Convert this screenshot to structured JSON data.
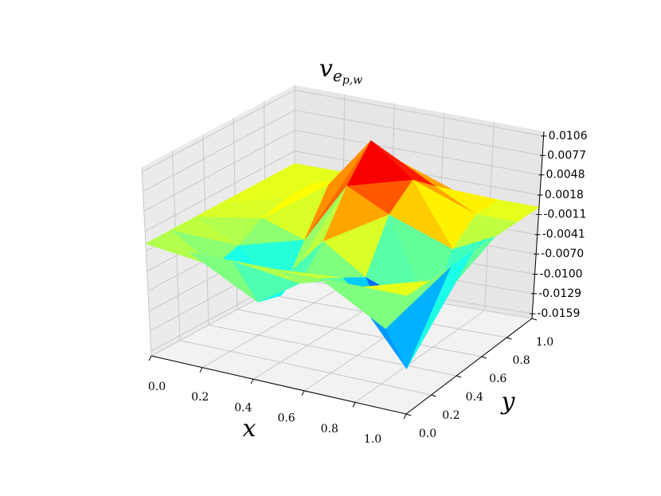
{
  "chart_data": {
    "type": "surface",
    "title": {
      "base": "v",
      "sub": "e",
      "subsub": "p,w"
    },
    "xlabel": "x",
    "ylabel": "y",
    "x": [
      0,
      0.1667,
      0.3333,
      0.5,
      0.6667,
      0.8333,
      1
    ],
    "y": [
      0,
      0.1667,
      0.3333,
      0.5,
      0.6667,
      0.8333,
      1
    ],
    "z": [
      [
        0,
        0,
        0,
        0,
        0,
        0,
        0
      ],
      [
        0,
        -0.004,
        -0.008,
        -0.004,
        -0.002,
        -0.008,
        0
      ],
      [
        0,
        -0.003,
        -0.009,
        0.0,
        -0.004,
        -0.0159,
        0
      ],
      [
        0,
        -0.001,
        -0.003,
        0.006,
        0.003,
        -0.01,
        0
      ],
      [
        0,
        0.0,
        0.003,
        0.0106,
        0.006,
        -0.003,
        0
      ],
      [
        0,
        0.0,
        0.002,
        0.006,
        0.003,
        0.0,
        0
      ],
      [
        0,
        0,
        0,
        0,
        0,
        0,
        0
      ]
    ],
    "colormap": "jet",
    "xlim": [
      0,
      1
    ],
    "ylim": [
      0,
      1
    ],
    "zlim": [
      -0.0166,
      0.0113
    ],
    "xticks": [
      {
        "value": 0,
        "label": "0.0"
      },
      {
        "value": 0.2,
        "label": "0.2"
      },
      {
        "value": 0.4,
        "label": "0.4"
      },
      {
        "value": 0.6,
        "label": "0.6"
      },
      {
        "value": 0.8,
        "label": "0.8"
      },
      {
        "value": 1,
        "label": "1.0"
      }
    ],
    "yticks": [
      {
        "value": 0,
        "label": "0.0"
      },
      {
        "value": 0.2,
        "label": "0.2"
      },
      {
        "value": 0.4,
        "label": "0.4"
      },
      {
        "value": 0.6,
        "label": "0.6"
      },
      {
        "value": 0.8,
        "label": "0.8"
      },
      {
        "value": 1,
        "label": "1.0"
      }
    ],
    "zticks": [
      -0.0159,
      -0.0129,
      {
        "value": -0.01,
        "label": "-0.0100"
      },
      {
        "value": -0.007,
        "label": "-0.0070"
      },
      -0.0041,
      -0.0011,
      0.0018,
      0.0048,
      0.0077,
      0.0106
    ],
    "grid": true
  }
}
